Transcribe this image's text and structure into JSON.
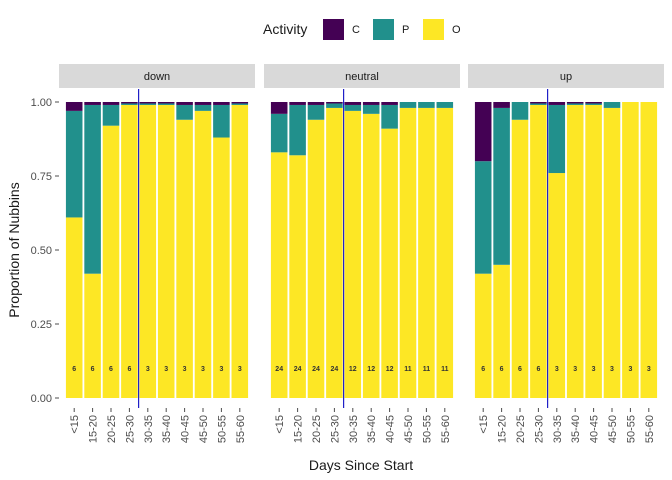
{
  "chart_data": {
    "type": "bar",
    "stacked": true,
    "xlabel": "Days Since Start",
    "ylabel": "Proportion of Nubbins",
    "ylim": [
      0,
      1
    ],
    "yticks": [
      "0.00",
      "0.25",
      "0.50",
      "0.75",
      "1.00"
    ],
    "ytick_values": [
      0,
      0.25,
      0.5,
      0.75,
      1
    ],
    "categories": [
      "<15",
      "15-20",
      "20-25",
      "25-30",
      "30-35",
      "35-40",
      "40-45",
      "45-50",
      "50-55",
      "55-60"
    ],
    "legend": {
      "title": "Activity",
      "position": "top",
      "items": [
        {
          "label": "C",
          "color": "#440154"
        },
        {
          "label": "P",
          "color": "#21908C"
        },
        {
          "label": "O",
          "color": "#FDE725"
        }
      ]
    },
    "reference_line": {
      "category": "25-30",
      "color": "#2020c8"
    },
    "panels": [
      {
        "label": "down",
        "O": [
          0.61,
          0.42,
          0.92,
          0.99,
          0.99,
          0.99,
          0.94,
          0.97,
          0.88,
          0.99
        ],
        "P": [
          0.36,
          0.57,
          0.07,
          0.005,
          0.005,
          0.005,
          0.05,
          0.02,
          0.11,
          0.005
        ],
        "C": [
          0.03,
          0.01,
          0.01,
          0.005,
          0.005,
          0.005,
          0.01,
          0.01,
          0.01,
          0.005
        ],
        "counts": [
          "6",
          "6",
          "6",
          "6",
          "3",
          "3",
          "3",
          "3",
          "3",
          "3"
        ]
      },
      {
        "label": "neutral",
        "O": [
          0.83,
          0.82,
          0.94,
          0.98,
          0.97,
          0.96,
          0.91,
          0.98,
          0.98,
          0.98
        ],
        "P": [
          0.13,
          0.17,
          0.05,
          0.015,
          0.02,
          0.03,
          0.08,
          0.02,
          0.02,
          0.02
        ],
        "C": [
          0.04,
          0.01,
          0.01,
          0.005,
          0.01,
          0.01,
          0.01,
          0.0,
          0.0,
          0.0
        ],
        "counts": [
          "24",
          "24",
          "24",
          "24",
          "12",
          "12",
          "12",
          "11",
          "11",
          "11"
        ]
      },
      {
        "label": "up",
        "O": [
          0.42,
          0.45,
          0.94,
          0.99,
          0.76,
          0.99,
          0.99,
          0.98,
          1.0,
          1.0
        ],
        "P": [
          0.38,
          0.53,
          0.06,
          0.005,
          0.23,
          0.005,
          0.005,
          0.02,
          0.0,
          0.0
        ],
        "C": [
          0.2,
          0.02,
          0.0,
          0.005,
          0.01,
          0.005,
          0.005,
          0.0,
          0.0,
          0.0
        ],
        "counts": [
          "6",
          "6",
          "6",
          "6",
          "3",
          "3",
          "3",
          "3",
          "3",
          "3"
        ]
      }
    ]
  }
}
